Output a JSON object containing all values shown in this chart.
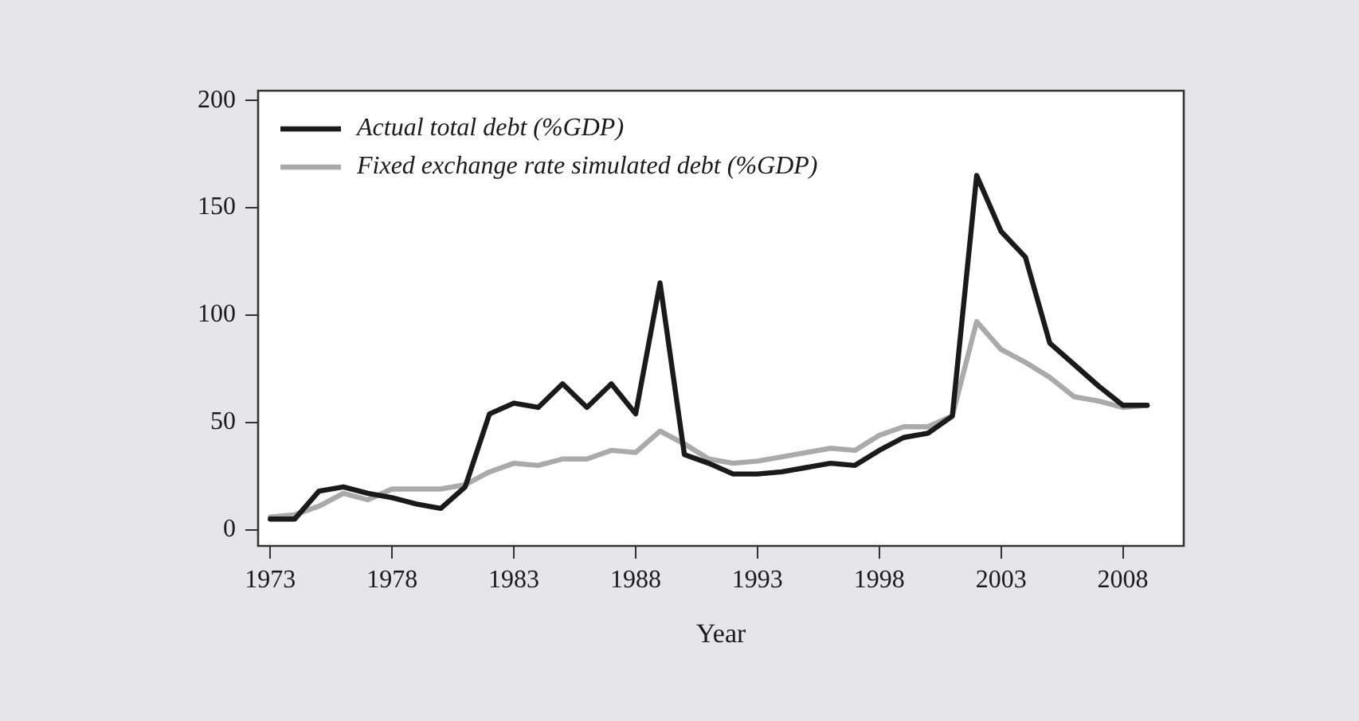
{
  "chart_data": {
    "type": "line",
    "xlabel": "Year",
    "x": [
      1973,
      1974,
      1975,
      1976,
      1977,
      1978,
      1979,
      1980,
      1981,
      1982,
      1983,
      1984,
      1985,
      1986,
      1987,
      1988,
      1989,
      1990,
      1991,
      1992,
      1993,
      1994,
      1995,
      1996,
      1997,
      1998,
      1999,
      2000,
      2001,
      2002,
      2003,
      2004,
      2005,
      2006,
      2007,
      2008,
      2009
    ],
    "series": [
      {
        "name": "Actual total debt (%GDP)",
        "color": "#1a1a1a",
        "values": [
          5,
          5,
          18,
          20,
          17,
          15,
          12,
          10,
          20,
          54,
          59,
          57,
          68,
          57,
          68,
          54,
          115,
          35,
          31,
          26,
          26,
          27,
          29,
          31,
          30,
          37,
          43,
          45,
          53,
          165,
          139,
          127,
          87,
          77,
          67,
          58,
          58
        ]
      },
      {
        "name": "Fixed exchange rate simulated debt (%GDP)",
        "color": "#aaaaaa",
        "values": [
          6,
          7,
          11,
          17,
          14,
          19,
          19,
          19,
          21,
          27,
          31,
          30,
          33,
          33,
          37,
          36,
          46,
          40,
          33,
          31,
          32,
          34,
          36,
          38,
          37,
          44,
          48,
          48,
          53,
          97,
          84,
          78,
          71,
          62,
          60,
          57,
          58
        ]
      }
    ],
    "xlim": [
      1972.5,
      2010.5
    ],
    "xticks": [
      1973,
      1978,
      1983,
      1988,
      1993,
      1998,
      2003,
      2008
    ],
    "ylim": [
      -7.5,
      204.5
    ],
    "yticks": [
      0,
      50,
      100,
      150,
      200
    ],
    "grid": false,
    "legend": "top left",
    "line_style": "solid",
    "marker": "none"
  }
}
